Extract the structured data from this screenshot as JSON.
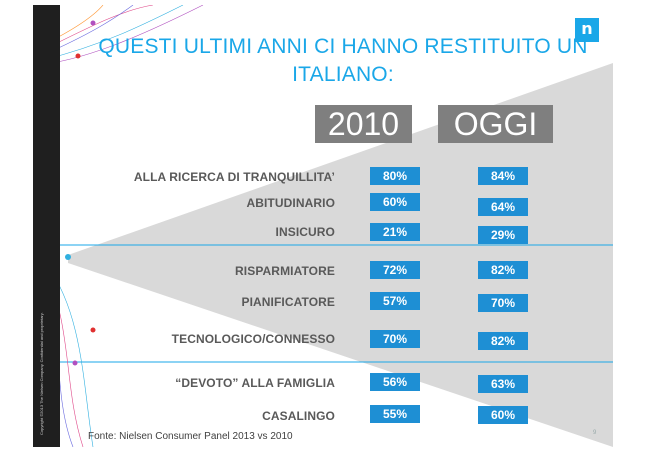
{
  "title": "QUESTI ULTIMI ANNI CI HANNO RESTITUITO UN ITALIANO:",
  "logo_text": "n",
  "columns": [
    "2010",
    "OGGI"
  ],
  "rows": [
    {
      "label": "ALLA RICERCA DI TRANQUILLITA’",
      "v2010": "80%",
      "oggi": "84%"
    },
    {
      "label": "ABITUDINARIO",
      "v2010": "60%",
      "oggi": "64%"
    },
    {
      "label": "INSICURO",
      "v2010": "21%",
      "oggi": "29%"
    },
    {
      "label": "RISPARMIATORE",
      "v2010": "72%",
      "oggi": "82%"
    },
    {
      "label": "PIANIFICATORE",
      "v2010": "57%",
      "oggi": "70%"
    },
    {
      "label": "TECNOLOGICO/CONNESSO",
      "v2010": "70%",
      "oggi": "82%"
    },
    {
      "label": "“DEVOTO” ALLA FAMIGLIA",
      "v2010": "56%",
      "oggi": "63%"
    },
    {
      "label": "CASALINGO",
      "v2010": "55%",
      "oggi": "60%"
    }
  ],
  "source": "Fonte: Nielsen Consumer Panel 2013 vs 2010",
  "page_number": "9",
  "copyright": "Copyright ©2013 The Nielsen Company. Confidential and proprietary.",
  "colors": {
    "accent": "#1aa7e8",
    "value_box": "#1e8fd4",
    "year_box": "#7f7f7f",
    "wedge": "#d9d9d9"
  }
}
